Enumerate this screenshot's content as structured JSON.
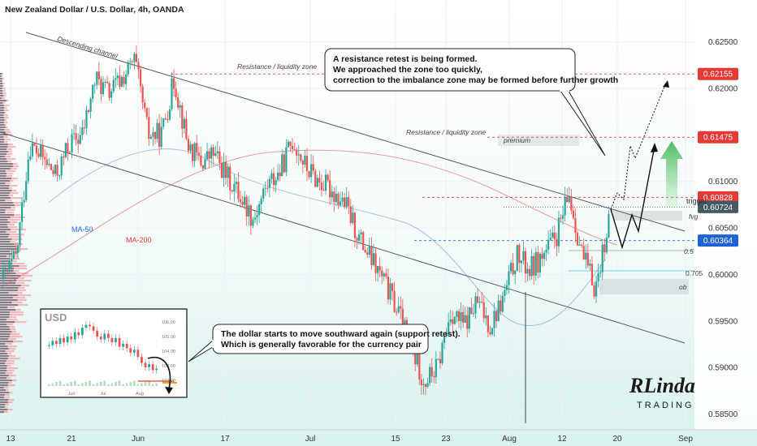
{
  "chart_data": {
    "type": "candlestick",
    "title": "New Zealand Dollar / U.S. Dollar, 4h, OANDA",
    "ylim": [
      0.5833,
      0.6295
    ],
    "y_ticks": [
      "0.62500",
      "0.62000",
      "0.61000",
      "0.60500",
      "0.60000",
      "0.59500",
      "0.59000",
      "0.58500"
    ],
    "y_tick_values": [
      0.625,
      0.62,
      0.61,
      0.605,
      0.6,
      0.595,
      0.59,
      0.585
    ],
    "x_ticks": [
      "13",
      "21",
      "Jun",
      "17",
      "Jul",
      "15",
      "23",
      "Aug",
      "12",
      "20",
      "Sep"
    ],
    "price_levels": [
      {
        "label": "0.62155",
        "value": 0.62155,
        "color": "#e53935"
      },
      {
        "label": "0.61475",
        "value": 0.61475,
        "color": "#e53935"
      },
      {
        "label": "0.60828",
        "value": 0.60828,
        "color": "#e53935"
      },
      {
        "label": "0.60724",
        "value": 0.60724,
        "color": "#455a64"
      },
      {
        "label": "0.60364",
        "value": 0.60364,
        "color": "#1e63d6"
      }
    ],
    "path_points": [
      [
        0.5995,
        0.6005
      ],
      [
        0.602,
        0.6075
      ],
      [
        0.614,
        0.61
      ],
      [
        0.6125,
        0.6115
      ],
      [
        0.6105,
        0.6095
      ],
      [
        0.614,
        0.6175
      ],
      [
        0.615,
        0.6185
      ],
      [
        0.621,
        0.619
      ],
      [
        0.6195,
        0.617
      ],
      [
        0.621,
        0.6185
      ],
      [
        0.623,
        0.62
      ],
      [
        0.615,
        0.6105
      ],
      [
        0.615,
        0.6175
      ],
      [
        0.621,
        0.618
      ],
      [
        0.614,
        0.615
      ],
      [
        0.612,
        0.611
      ],
      [
        0.613,
        0.612
      ],
      [
        0.6105,
        0.609
      ],
      [
        0.6085,
        0.6075
      ],
      [
        0.606,
        0.6075
      ],
      [
        0.6095,
        0.612
      ],
      [
        0.611,
        0.6135
      ],
      [
        0.6145,
        0.613
      ],
      [
        0.6115,
        0.611
      ],
      [
        0.61,
        0.6085
      ],
      [
        0.609,
        0.608
      ],
      [
        0.6075,
        0.6055
      ],
      [
        0.604,
        0.604
      ],
      [
        0.6015,
        0.6005
      ],
      [
        0.599,
        0.597
      ],
      [
        0.596,
        0.594
      ],
      [
        0.592,
        0.59
      ],
      [
        0.5885,
        0.587
      ],
      [
        0.59,
        0.593
      ],
      [
        0.596,
        0.5955
      ],
      [
        0.5945,
        0.5955
      ],
      [
        0.597,
        0.598
      ],
      [
        0.5945,
        0.5925
      ],
      [
        0.5975,
        0.601
      ],
      [
        0.602,
        0.6025
      ],
      [
        0.6005,
        0.603
      ],
      [
        0.602,
        0.6035
      ],
      [
        0.604,
        0.606
      ],
      [
        0.6085,
        0.606
      ],
      [
        0.602,
        0.6
      ],
      [
        0.5985,
        0.602
      ],
      [
        0.606,
        0.608
      ]
    ],
    "annotations": {
      "channel": "Descending channel",
      "zone1": "Resistance / liquidity zone",
      "zone2": "Resistance / liquidity zone",
      "premium": "premium",
      "fvg": "fvg",
      "ob": "ob",
      "fib_05": "0.5",
      "fib_0705": "0.705",
      "trigger": "trigger",
      "ma50": "MA-50",
      "ma200": "MA-200"
    },
    "callout_top": [
      "A resistance retest is being formed.",
      "We approached the zone too quickly,",
      "correction to the imbalance zone may be formed before further growth"
    ],
    "callout_bottom": [
      "The dollar starts to move southward again (support retest).",
      "Which is generally favorable for the currency pair"
    ],
    "inset": {
      "title": "USD",
      "y_ticks": [
        "106.00",
        "105.00",
        "104.00",
        "103.00",
        "102.00"
      ],
      "y_tick_values": [
        106,
        105,
        104,
        103,
        102
      ],
      "ylim": [
        101.5,
        106.5
      ],
      "x_ticks": [
        "Jun",
        "Jul",
        "Aug"
      ],
      "closes": [
        104.4,
        104.7,
        104.5,
        104.9,
        104.6,
        105.0,
        104.8,
        105.3,
        105.1,
        105.6,
        105.8,
        105.7,
        105.4,
        105.0,
        104.8,
        105.2,
        104.9,
        104.6,
        104.9,
        104.3,
        104.5,
        104.2,
        103.9,
        104.1,
        103.6,
        103.2,
        102.9,
        103.1,
        102.7,
        102.8
      ]
    }
  },
  "branding": {
    "logo_text": "RLinda TRADING",
    "logo_line1": "RLinda",
    "logo_line2": "TRADING"
  },
  "colors": {
    "bull": "#26a69a",
    "bear": "#ef5350",
    "grid": "#eef0f3",
    "channel": "#555b66"
  }
}
